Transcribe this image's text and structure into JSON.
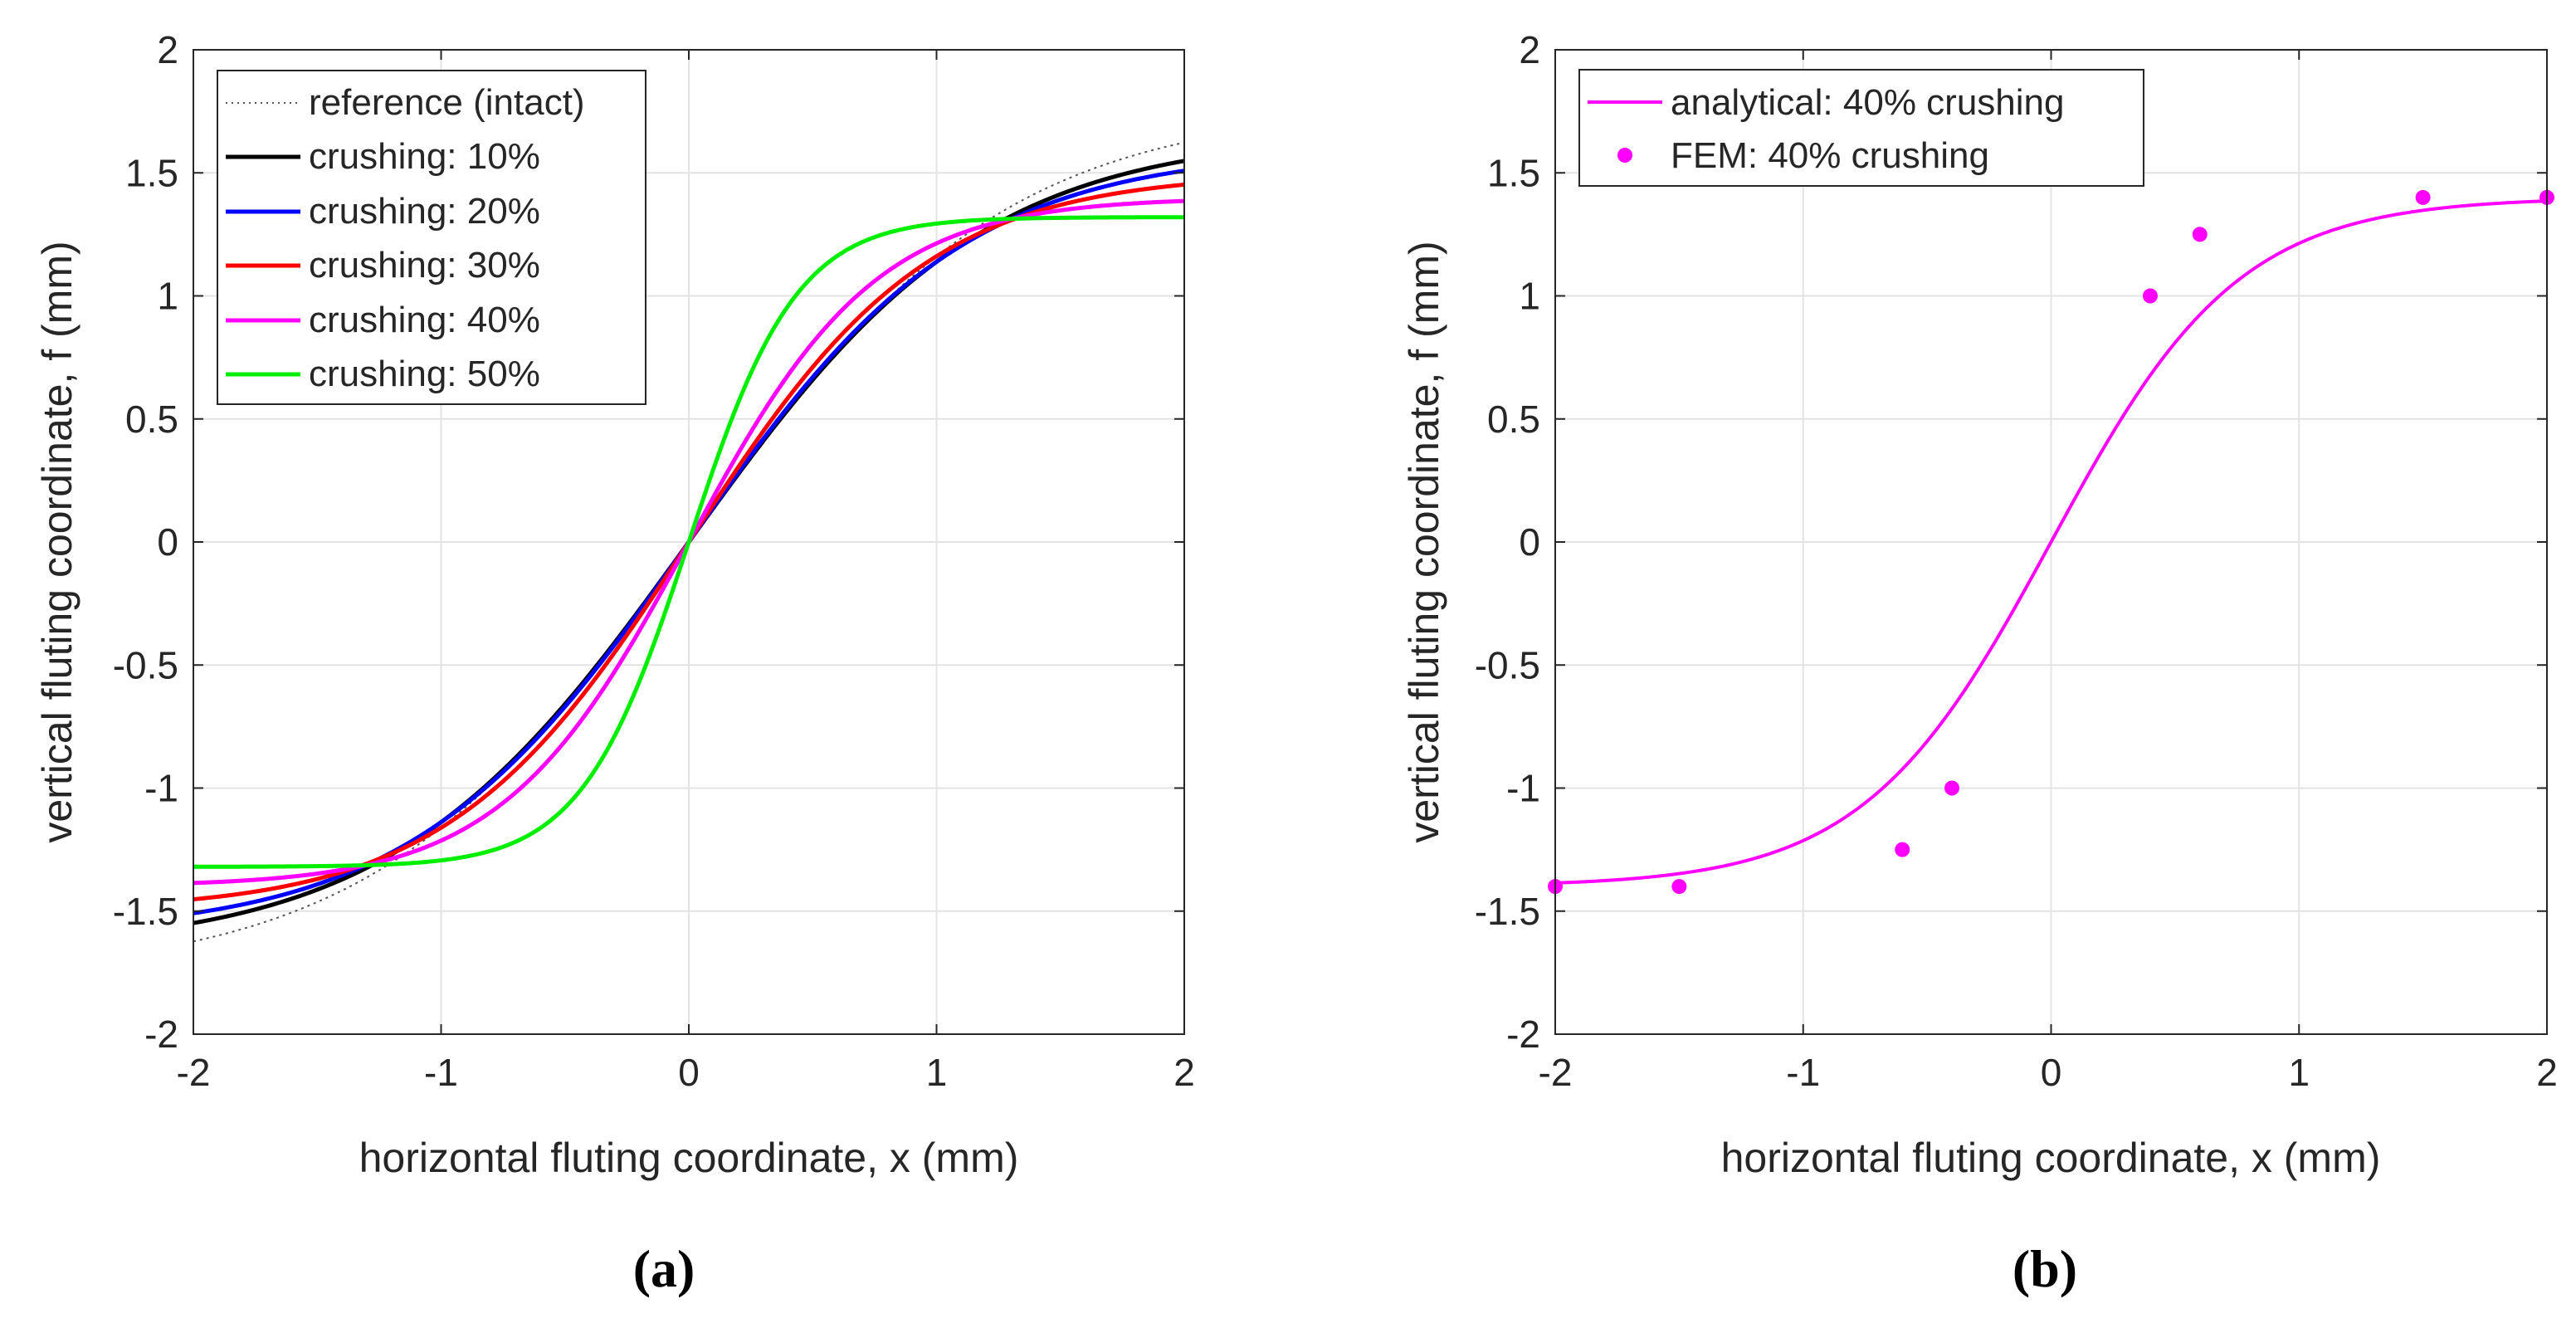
{
  "chart_data": [
    {
      "panel": "a",
      "panel_label": "(a)",
      "type": "line",
      "xlabel": "horizontal fluting coordinate, x (mm)",
      "ylabel": "vertical fluting coordinate, f (mm)",
      "xlim": [
        -2,
        2
      ],
      "ylim": [
        -2,
        2
      ],
      "xticks": [
        -2,
        -1,
        0,
        1,
        2
      ],
      "yticks": [
        -2,
        -1.5,
        -1,
        -0.5,
        0,
        0.5,
        1,
        1.5,
        2
      ],
      "xtick_labels": [
        "-2",
        "-1",
        "0",
        "1",
        "2"
      ],
      "ytick_labels": [
        "-2",
        "-1.5",
        "-1",
        "-0.5",
        "0",
        "0.5",
        "1",
        "1.5",
        "2"
      ],
      "grid": true,
      "legend_position": "top-left",
      "series": [
        {
          "name": "reference (intact)",
          "color": "#555555",
          "style": "dotted",
          "amplitude": 1.77,
          "k": 0.785
        },
        {
          "name": "crushing: 10%",
          "color": "#000000",
          "style": "solid",
          "amplitude": 1.66,
          "k": 0.84
        },
        {
          "name": "crushing: 20%",
          "color": "#0000ff",
          "style": "solid",
          "amplitude": 1.595,
          "k": 0.895
        },
        {
          "name": "crushing: 30%",
          "color": "#ff0000",
          "style": "solid",
          "amplitude": 1.5,
          "k": 1.03
        },
        {
          "name": "crushing: 40%",
          "color": "#ff00ff",
          "style": "solid",
          "amplitude": 1.4,
          "k": 1.32
        },
        {
          "name": "crushing: 50%",
          "color": "#00ee00",
          "style": "solid",
          "amplitude": 1.32,
          "k": 2.3
        }
      ]
    },
    {
      "panel": "b",
      "panel_label": "(b)",
      "type": "line",
      "xlabel": "horizontal fluting coordinate, x (mm)",
      "ylabel": "vertical fluting coordinate, f (mm)",
      "xlim": [
        -2,
        2
      ],
      "ylim": [
        -2,
        2
      ],
      "xticks": [
        -2,
        -1,
        0,
        1,
        2
      ],
      "yticks": [
        -2,
        -1.5,
        -1,
        -0.5,
        0,
        0.5,
        1,
        1.5,
        2
      ],
      "xtick_labels": [
        "-2",
        "-1",
        "0",
        "1",
        "2"
      ],
      "ytick_labels": [
        "-2",
        "-1.5",
        "-1",
        "-0.5",
        "0",
        "0.5",
        "1",
        "1.5",
        "2"
      ],
      "grid": true,
      "legend_position": "top-left",
      "series": [
        {
          "name": "analytical: 40% crushing",
          "color": "#ff00ff",
          "style": "solid",
          "amplitude": 1.4,
          "k": 1.32
        }
      ],
      "points": {
        "name": "FEM: 40% crushing",
        "color": "#ff00ff",
        "x": [
          -2,
          -1.5,
          -0.6,
          -0.4,
          0.4,
          0.6,
          1.5,
          2
        ],
        "y": [
          -1.4,
          -1.4,
          -1.25,
          -1.0,
          1.0,
          1.25,
          1.4,
          1.4
        ]
      }
    }
  ]
}
